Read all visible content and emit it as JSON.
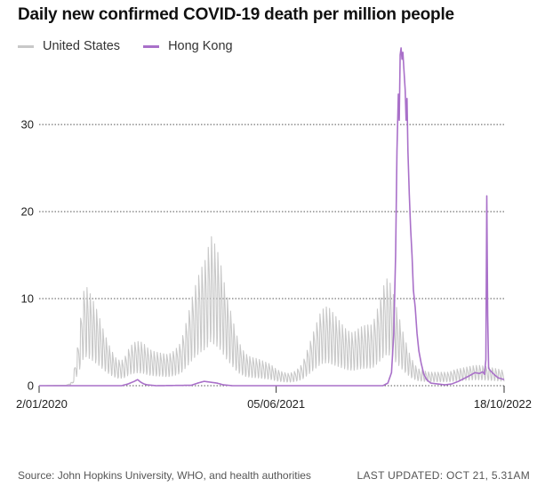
{
  "chart_data": {
    "type": "line",
    "title": "Daily new confirmed COVID-19 death per million people",
    "x_tick_labels": [
      "2/01/2020",
      "05/06/2021",
      "18/10/2022"
    ],
    "x_range": [
      "2020-01-02",
      "2022-10-18"
    ],
    "y_ticks": [
      0,
      10,
      20,
      30
    ],
    "ylim": [
      0,
      39
    ],
    "grid": "horizontal dotted",
    "legend_position": "top-left",
    "series": [
      {
        "name": "United States",
        "color": "#c8c8c8",
        "points": [
          [
            "2020-01-02",
            0
          ],
          [
            "2020-03-01",
            0.05
          ],
          [
            "2020-03-15",
            0.3
          ],
          [
            "2020-03-29",
            3.5
          ],
          [
            "2020-04-06",
            6.5
          ],
          [
            "2020-04-12",
            7.5
          ],
          [
            "2020-04-19",
            7.1
          ],
          [
            "2020-04-26",
            6.6
          ],
          [
            "2020-05-10",
            5.4
          ],
          [
            "2020-05-24",
            3.9
          ],
          [
            "2020-06-07",
            2.7
          ],
          [
            "2020-06-21",
            1.9
          ],
          [
            "2020-07-05",
            1.9
          ],
          [
            "2020-07-19",
            2.9
          ],
          [
            "2020-08-02",
            3.3
          ],
          [
            "2020-08-16",
            3.2
          ],
          [
            "2020-08-30",
            2.7
          ],
          [
            "2020-09-13",
            2.5
          ],
          [
            "2020-09-27",
            2.4
          ],
          [
            "2020-10-11",
            2.3
          ],
          [
            "2020-10-25",
            2.6
          ],
          [
            "2020-11-08",
            3.2
          ],
          [
            "2020-11-22",
            5.0
          ],
          [
            "2020-12-06",
            7.0
          ],
          [
            "2020-12-20",
            8.5
          ],
          [
            "2021-01-03",
            9.5
          ],
          [
            "2021-01-12",
            11.2
          ],
          [
            "2021-01-20",
            10.6
          ],
          [
            "2021-01-31",
            9.6
          ],
          [
            "2021-02-14",
            7.1
          ],
          [
            "2021-02-28",
            5.1
          ],
          [
            "2021-03-14",
            3.3
          ],
          [
            "2021-03-28",
            2.4
          ],
          [
            "2021-04-11",
            2.1
          ],
          [
            "2021-04-25",
            2.0
          ],
          [
            "2021-05-09",
            1.8
          ],
          [
            "2021-05-23",
            1.6
          ],
          [
            "2021-06-06",
            1.2
          ],
          [
            "2021-06-20",
            1.0
          ],
          [
            "2021-07-04",
            0.9
          ],
          [
            "2021-07-18",
            1.1
          ],
          [
            "2021-08-01",
            1.6
          ],
          [
            "2021-08-15",
            2.9
          ],
          [
            "2021-08-29",
            4.3
          ],
          [
            "2021-09-12",
            5.6
          ],
          [
            "2021-09-26",
            5.9
          ],
          [
            "2021-10-10",
            5.3
          ],
          [
            "2021-10-24",
            4.7
          ],
          [
            "2021-11-07",
            4.1
          ],
          [
            "2021-11-21",
            3.9
          ],
          [
            "2021-12-05",
            4.3
          ],
          [
            "2021-12-19",
            4.5
          ],
          [
            "2022-01-02",
            4.5
          ],
          [
            "2022-01-16",
            6.0
          ],
          [
            "2022-01-30",
            7.8
          ],
          [
            "2022-02-06",
            8.0
          ],
          [
            "2022-02-13",
            7.3
          ],
          [
            "2022-02-27",
            5.4
          ],
          [
            "2022-03-13",
            3.6
          ],
          [
            "2022-03-27",
            2.1
          ],
          [
            "2022-04-10",
            1.3
          ],
          [
            "2022-04-24",
            1.1
          ],
          [
            "2022-05-08",
            1.0
          ],
          [
            "2022-05-22",
            1.0
          ],
          [
            "2022-06-05",
            1.0
          ],
          [
            "2022-06-19",
            1.0
          ],
          [
            "2022-07-03",
            1.2
          ],
          [
            "2022-07-17",
            1.3
          ],
          [
            "2022-07-31",
            1.4
          ],
          [
            "2022-08-14",
            1.5
          ],
          [
            "2022-08-28",
            1.5
          ],
          [
            "2022-09-11",
            1.4
          ],
          [
            "2022-09-25",
            1.3
          ],
          [
            "2022-10-09",
            1.2
          ],
          [
            "2022-10-18",
            1.1
          ]
        ]
      },
      {
        "name": "Hong Kong",
        "color": "#a970c9",
        "points": [
          [
            "2020-01-02",
            0
          ],
          [
            "2020-07-01",
            0
          ],
          [
            "2020-07-15",
            0.2
          ],
          [
            "2020-07-29",
            0.5
          ],
          [
            "2020-08-05",
            0.7
          ],
          [
            "2020-08-12",
            0.4
          ],
          [
            "2020-08-19",
            0.2
          ],
          [
            "2020-08-26",
            0.1
          ],
          [
            "2020-09-15",
            0
          ],
          [
            "2020-12-01",
            0.05
          ],
          [
            "2020-12-15",
            0.3
          ],
          [
            "2020-12-29",
            0.5
          ],
          [
            "2021-01-12",
            0.4
          ],
          [
            "2021-01-26",
            0.3
          ],
          [
            "2021-02-09",
            0.1
          ],
          [
            "2021-03-01",
            0
          ],
          [
            "2022-01-25",
            0
          ],
          [
            "2022-02-05",
            0.3
          ],
          [
            "2022-02-13",
            1.5
          ],
          [
            "2022-02-18",
            6.0
          ],
          [
            "2022-02-22",
            15.0
          ],
          [
            "2022-02-25",
            27.0
          ],
          [
            "2022-02-28",
            33.5
          ],
          [
            "2022-03-02",
            30.5
          ],
          [
            "2022-03-04",
            38.0
          ],
          [
            "2022-03-06",
            38.8
          ],
          [
            "2022-03-08",
            37.5
          ],
          [
            "2022-03-10",
            38.3
          ],
          [
            "2022-03-12",
            36.5
          ],
          [
            "2022-03-15",
            34.0
          ],
          [
            "2022-03-17",
            30.5
          ],
          [
            "2022-03-19",
            33.0
          ],
          [
            "2022-03-21",
            27.0
          ],
          [
            "2022-03-24",
            22.0
          ],
          [
            "2022-03-27",
            18.0
          ],
          [
            "2022-03-30",
            15.0
          ],
          [
            "2022-04-02",
            11.0
          ],
          [
            "2022-04-06",
            9.0
          ],
          [
            "2022-04-10",
            6.0
          ],
          [
            "2022-04-14",
            4.0
          ],
          [
            "2022-04-19",
            2.6
          ],
          [
            "2022-04-25",
            1.3
          ],
          [
            "2022-05-01",
            0.7
          ],
          [
            "2022-05-10",
            0.3
          ],
          [
            "2022-05-25",
            0.2
          ],
          [
            "2022-06-10",
            0.1
          ],
          [
            "2022-06-25",
            0.2
          ],
          [
            "2022-07-10",
            0.5
          ],
          [
            "2022-07-25",
            0.9
          ],
          [
            "2022-08-05",
            1.2
          ],
          [
            "2022-08-15",
            1.5
          ],
          [
            "2022-08-25",
            1.4
          ],
          [
            "2022-09-01",
            1.6
          ],
          [
            "2022-09-05",
            1.3
          ],
          [
            "2022-09-08",
            3.0
          ],
          [
            "2022-09-10",
            21.8
          ],
          [
            "2022-09-12",
            8.0
          ],
          [
            "2022-09-14",
            2.0
          ],
          [
            "2022-09-20",
            1.6
          ],
          [
            "2022-09-28",
            1.2
          ],
          [
            "2022-10-05",
            0.9
          ],
          [
            "2022-10-12",
            0.8
          ],
          [
            "2022-10-18",
            0.7
          ]
        ]
      }
    ]
  },
  "footer": {
    "source": "Source: John Hopkins University, WHO, and health authorities",
    "updated": "LAST UPDATED: OCT 21, 5.31AM"
  }
}
